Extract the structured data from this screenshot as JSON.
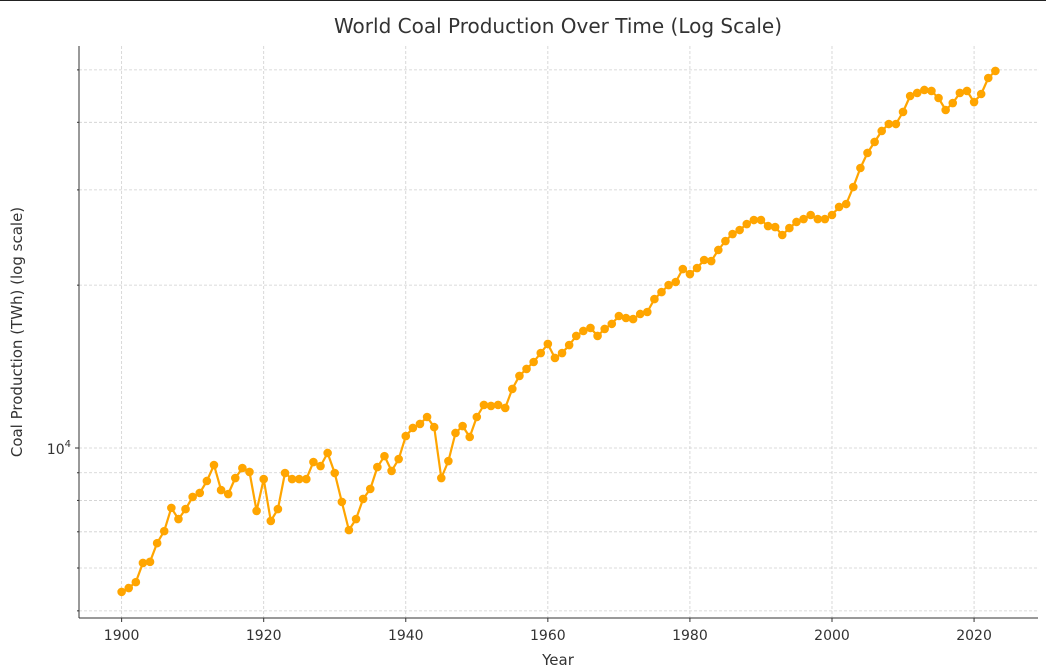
{
  "chart_data": {
    "type": "line",
    "title": "World Coal Production Over Time (Log Scale)",
    "xlabel": "Year",
    "ylabel": "Coal Production (TWh) (log scale)",
    "yscale": "log",
    "xlim": [
      1894,
      2029
    ],
    "ylim": [
      4850,
      55350
    ],
    "grid": true,
    "color": "#FFA500",
    "marker": "circle",
    "x_ticks": [
      1900,
      1920,
      1940,
      1960,
      1980,
      2000,
      2020
    ],
    "y_tick_labels": [
      {
        "value": 10000,
        "base": "10",
        "exp": "4"
      }
    ],
    "y_minor_ticks": [
      5000,
      6000,
      7000,
      8000,
      9000,
      20000,
      30000,
      40000,
      50000
    ],
    "x": [
      1900,
      1901,
      1902,
      1903,
      1904,
      1905,
      1906,
      1907,
      1908,
      1909,
      1910,
      1911,
      1912,
      1913,
      1914,
      1915,
      1916,
      1917,
      1918,
      1919,
      1920,
      1921,
      1922,
      1923,
      1924,
      1925,
      1926,
      1927,
      1928,
      1929,
      1930,
      1931,
      1932,
      1933,
      1934,
      1935,
      1936,
      1937,
      1938,
      1939,
      1940,
      1941,
      1942,
      1943,
      1944,
      1945,
      1946,
      1947,
      1948,
      1949,
      1950,
      1951,
      1952,
      1953,
      1954,
      1955,
      1956,
      1957,
      1958,
      1959,
      1960,
      1961,
      1962,
      1963,
      1964,
      1965,
      1966,
      1967,
      1968,
      1969,
      1970,
      1971,
      1972,
      1973,
      1974,
      1975,
      1976,
      1977,
      1978,
      1979,
      1980,
      1981,
      1982,
      1983,
      1984,
      1985,
      1986,
      1987,
      1988,
      1989,
      1990,
      1991,
      1992,
      1993,
      1994,
      1995,
      1996,
      1997,
      1998,
      1999,
      2000,
      2001,
      2002,
      2003,
      2004,
      2005,
      2006,
      2007,
      2008,
      2009,
      2010,
      2011,
      2012,
      2013,
      2014,
      2015,
      2016,
      2017,
      2018,
      2019,
      2020,
      2021,
      2022,
      2023
    ],
    "values": [
      5420,
      5510,
      5650,
      6130,
      6160,
      6670,
      7020,
      7750,
      7390,
      7710,
      8120,
      8260,
      8690,
      9300,
      8360,
      8220,
      8800,
      9180,
      9030,
      7650,
      8760,
      7330,
      7710,
      8990,
      8760,
      8760,
      8760,
      9420,
      9260,
      9790,
      8990,
      7950,
      7050,
      7390,
      8050,
      8400,
      9220,
      9660,
      9070,
      9540,
      10520,
      10890,
      11080,
      11410,
      10930,
      8800,
      9460,
      10660,
      10980,
      10480,
      11410,
      12010,
      11960,
      12010,
      11860,
      12860,
      13590,
      14000,
      14420,
      14980,
      15570,
      14670,
      14980,
      15500,
      16110,
      16460,
      16670,
      16110,
      16600,
      16960,
      17540,
      17390,
      17310,
      17690,
      17840,
      18850,
      19420,
      20010,
      20270,
      21420,
      20970,
      21510,
      22260,
      22160,
      23230,
      24130,
      24860,
      25290,
      25940,
      26390,
      26390,
      25720,
      25610,
      24760,
      25500,
      26170,
      26500,
      26960,
      26500,
      26500,
      26960,
      27900,
      28250,
      30370,
      32930,
      35110,
      36790,
      38550,
      39710,
      39710,
      41800,
      44740,
      45320,
      45900,
      45710,
      44360,
      42150,
      43420,
      45320,
      45710,
      43600,
      45120,
      48300,
      49770
    ]
  }
}
